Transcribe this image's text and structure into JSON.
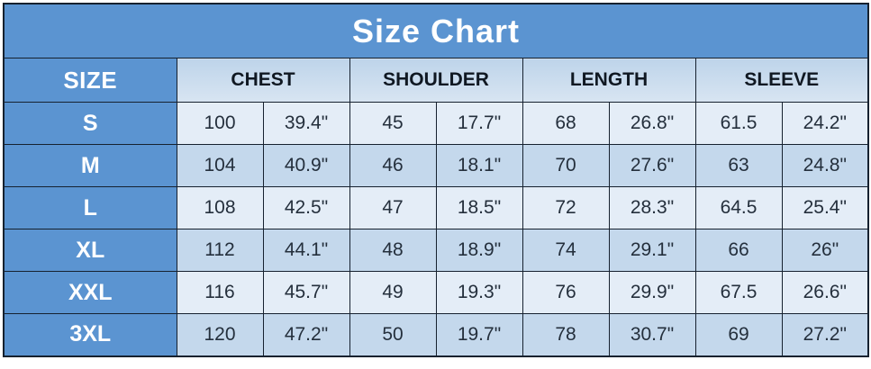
{
  "colors": {
    "accent_blue": "#5b94d1",
    "header_band_top": "#bed4ea",
    "header_band_bottom": "#d8e5f2",
    "row_light": "#e4edf7",
    "row_dark": "#c4d8ec",
    "border": "#16212f",
    "title_text": "#ffffff",
    "data_text": "#242f3c"
  },
  "chart_data": {
    "type": "table",
    "title": "Size Chart",
    "columns": [
      "SIZE",
      "CHEST",
      "SHOULDER",
      "LENGTH",
      "SLEEVE"
    ],
    "rows": [
      {
        "size": "S",
        "values": [
          "100",
          "39.4\"",
          "45",
          "17.7\"",
          "68",
          "26.8\"",
          "61.5",
          "24.2\""
        ]
      },
      {
        "size": "M",
        "values": [
          "104",
          "40.9\"",
          "46",
          "18.1\"",
          "70",
          "27.6\"",
          "63",
          "24.8\""
        ]
      },
      {
        "size": "L",
        "values": [
          "108",
          "42.5\"",
          "47",
          "18.5\"",
          "72",
          "28.3\"",
          "64.5",
          "25.4\""
        ]
      },
      {
        "size": "XL",
        "values": [
          "112",
          "44.1\"",
          "48",
          "18.9\"",
          "74",
          "29.1\"",
          "66",
          "26\""
        ]
      },
      {
        "size": "XXL",
        "values": [
          "116",
          "45.7\"",
          "49",
          "19.3\"",
          "76",
          "29.9\"",
          "67.5",
          "26.6\""
        ]
      },
      {
        "size": "3XL",
        "values": [
          "120",
          "47.2\"",
          "50",
          "19.7\"",
          "78",
          "30.7\"",
          "69",
          "27.2\""
        ]
      }
    ]
  }
}
